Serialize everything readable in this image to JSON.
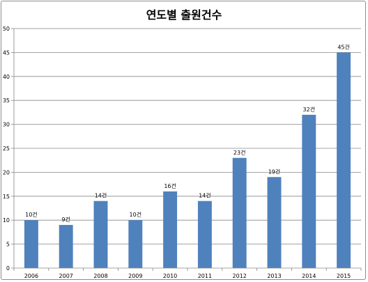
{
  "chart_data": {
    "type": "bar",
    "title": "연도별 출원건수",
    "categories": [
      "2006",
      "2007",
      "2008",
      "2009",
      "2010",
      "2011",
      "2012",
      "2013",
      "2014",
      "2015"
    ],
    "values": [
      10,
      9,
      14,
      10,
      16,
      14,
      23,
      19,
      32,
      45
    ],
    "data_labels": [
      "10건",
      "9건",
      "14건",
      "10건",
      "16건",
      "14건",
      "23건",
      "19건",
      "32건",
      "45건"
    ],
    "yticks": [
      "0",
      "5",
      "10",
      "15",
      "20",
      "25",
      "30",
      "35",
      "40",
      "45",
      "50"
    ],
    "ylim": [
      0,
      50
    ],
    "grid": true,
    "bar_color": "#4f81bd",
    "grid_color": "#868686"
  }
}
